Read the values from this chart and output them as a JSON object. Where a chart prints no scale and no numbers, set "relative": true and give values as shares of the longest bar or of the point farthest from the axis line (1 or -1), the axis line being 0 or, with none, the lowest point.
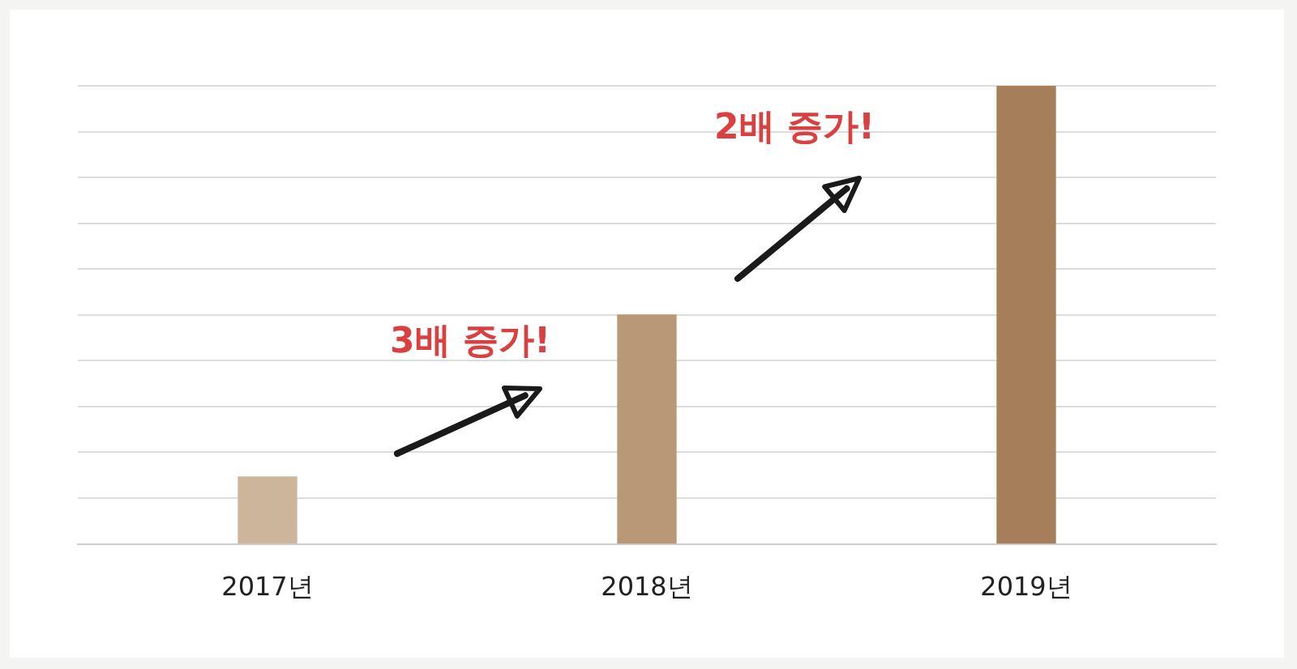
{
  "chart_data": {
    "type": "bar",
    "relative": true,
    "categories": [
      "2017년",
      "2018년",
      "2019년"
    ],
    "values": [
      0.146,
      0.5,
      1
    ],
    "colors": [
      "#cdb59c",
      "#b99877",
      "#a67f5a"
    ],
    "grid": "y",
    "annotations": [
      "3배 증가!",
      "2배 증가!"
    ]
  }
}
